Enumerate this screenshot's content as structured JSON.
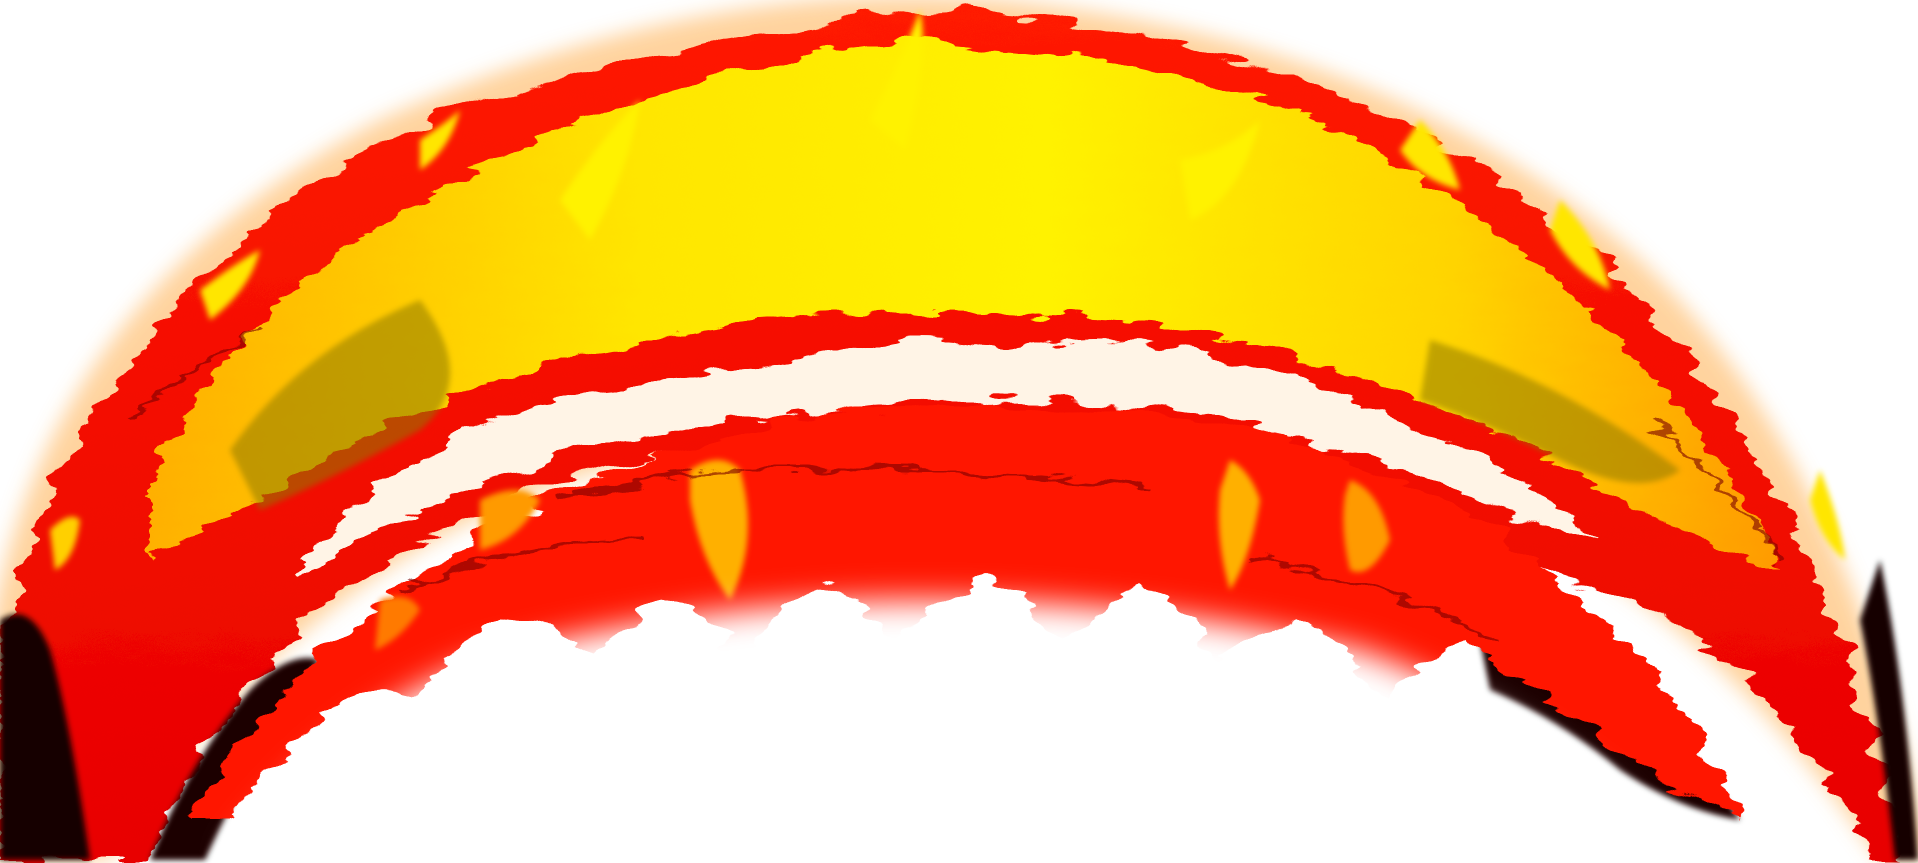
{
  "artwork": {
    "subject": "flame-arc",
    "colors": {
      "background": "#ffffff",
      "glow": "#ffd9a8",
      "outer_red": "#ff1400",
      "deep_red": "#d40000",
      "orange": "#ff7a00",
      "amber": "#ffb000",
      "yellow": "#ffe600",
      "bright_yellow": "#fff200",
      "olive_shadow": "#8f7a00",
      "dark_shadow": "#140000"
    }
  }
}
